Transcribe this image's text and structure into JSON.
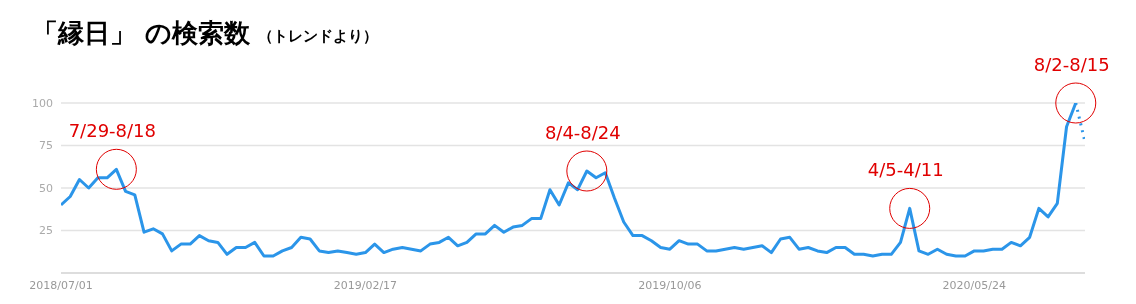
{
  "chart_data": {
    "type": "line",
    "title": "「縁日」 の検索数",
    "subtitle": "（トレンドより）",
    "x": [
      "2018-07-01",
      "2018-07-08",
      "2018-07-15",
      "2018-07-22",
      "2018-07-29",
      "2018-08-05",
      "2018-08-12",
      "2018-08-19",
      "2018-08-26",
      "2018-09-02",
      "2018-09-09",
      "2018-09-16",
      "2018-09-23",
      "2018-09-30",
      "2018-10-07",
      "2018-10-14",
      "2018-10-21",
      "2018-10-28",
      "2018-11-04",
      "2018-11-11",
      "2018-11-18",
      "2018-11-25",
      "2018-12-02",
      "2018-12-09",
      "2018-12-16",
      "2018-12-23",
      "2018-12-30",
      "2019-01-06",
      "2019-01-13",
      "2019-01-20",
      "2019-01-27",
      "2019-02-03",
      "2019-02-10",
      "2019-02-17",
      "2019-02-24",
      "2019-03-03",
      "2019-03-10",
      "2019-03-17",
      "2019-03-24",
      "2019-03-31",
      "2019-04-07",
      "2019-04-14",
      "2019-04-21",
      "2019-04-28",
      "2019-05-05",
      "2019-05-12",
      "2019-05-19",
      "2019-05-26",
      "2019-06-02",
      "2019-06-09",
      "2019-06-16",
      "2019-06-23",
      "2019-06-30",
      "2019-07-07",
      "2019-07-14",
      "2019-07-21",
      "2019-07-28",
      "2019-08-04",
      "2019-08-11",
      "2019-08-18",
      "2019-08-25",
      "2019-09-01",
      "2019-09-08",
      "2019-09-15",
      "2019-09-22",
      "2019-09-29",
      "2019-10-06",
      "2019-10-13",
      "2019-10-20",
      "2019-10-27",
      "2019-11-03",
      "2019-11-10",
      "2019-11-17",
      "2019-11-24",
      "2019-12-01",
      "2019-12-08",
      "2019-12-15",
      "2019-12-22",
      "2019-12-29",
      "2020-01-05",
      "2020-01-12",
      "2020-01-19",
      "2020-01-26",
      "2020-02-02",
      "2020-02-09",
      "2020-02-16",
      "2020-02-23",
      "2020-03-01",
      "2020-03-08",
      "2020-03-15",
      "2020-03-22",
      "2020-03-29",
      "2020-04-05",
      "2020-04-12",
      "2020-04-19",
      "2020-04-26",
      "2020-05-03",
      "2020-05-10",
      "2020-05-17",
      "2020-05-24",
      "2020-05-31",
      "2020-06-07",
      "2020-06-14",
      "2020-06-21",
      "2020-06-28",
      "2020-07-05",
      "2020-07-12",
      "2020-07-19",
      "2020-07-26",
      "2020-08-02",
      "2020-08-09"
    ],
    "series": [
      {
        "color": "#2b95e9",
        "line_style": "solid",
        "values": [
          40,
          45,
          55,
          50,
          56,
          56,
          61,
          48,
          46,
          24,
          26,
          23,
          13,
          17,
          17,
          22,
          19,
          18,
          11,
          15,
          15,
          18,
          10,
          10,
          13,
          15,
          21,
          20,
          13,
          12,
          13,
          12,
          11,
          12,
          17,
          12,
          14,
          15,
          14,
          13,
          17,
          18,
          21,
          16,
          18,
          23,
          23,
          28,
          24,
          27,
          28,
          32,
          32,
          49,
          40,
          53,
          49,
          60,
          56,
          59,
          44,
          30,
          22,
          22,
          19,
          15,
          14,
          19,
          17,
          17,
          13,
          13,
          14,
          15,
          14,
          15,
          16,
          12,
          20,
          21,
          14,
          15,
          13,
          12,
          15,
          15,
          11,
          11,
          10,
          11,
          11,
          18,
          38,
          13,
          11,
          14,
          11,
          10,
          10,
          13,
          13,
          14,
          14,
          18,
          16,
          21,
          38,
          33,
          41,
          86,
          100
        ]
      },
      {
        "color": "#2b95e9",
        "line_style": "dotted",
        "x": [
          "2020-08-09",
          "2020-08-16"
        ],
        "values": [
          100,
          77
        ]
      }
    ],
    "xlim": [
      "2018-07-01",
      "2020-08-16"
    ],
    "xticks": [
      {
        "value": "2018-07-01",
        "label": "2018/07/01"
      },
      {
        "value": "2019-02-17",
        "label": "2019/02/17"
      },
      {
        "value": "2019-10-06",
        "label": "2019/10/06"
      },
      {
        "value": "2020-05-24",
        "label": "2020/05/24"
      }
    ],
    "ylim": [
      0,
      100
    ],
    "yticks": [
      25,
      50,
      75,
      100
    ],
    "grid": "y",
    "marker": "none",
    "annotations": [
      {
        "text": "7/29-8/18",
        "x": "2018-08-12",
        "y": 61
      },
      {
        "text": "8/4-8/24",
        "x": "2019-08-04",
        "y": 60
      },
      {
        "text": "4/5-4/11",
        "x": "2020-04-05",
        "y": 38
      },
      {
        "text": "8/2-8/15",
        "x": "2020-08-09",
        "y": 100
      }
    ]
  }
}
